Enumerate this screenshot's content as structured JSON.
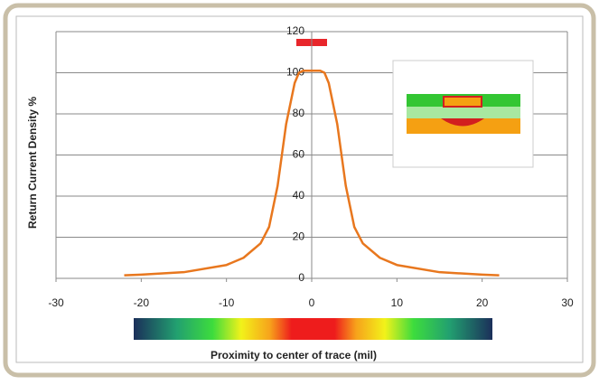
{
  "chart_data": {
    "type": "line",
    "x_label": "Proximity to center of trace (mil)",
    "y_label": "Return Current Density %",
    "x": [
      -22,
      -20,
      -15,
      -10,
      -8,
      -6,
      -5,
      -4,
      -3,
      -2,
      -1.5,
      -1,
      0,
      1,
      1.5,
      2,
      3,
      4,
      5,
      6,
      8,
      10,
      15,
      20,
      22
    ],
    "series": [
      {
        "color": "#e8771e",
        "values": [
          1.5,
          1.8,
          3,
          6.5,
          10,
          17,
          25,
          45,
          75,
          95,
          100,
          101,
          101,
          101,
          100,
          95,
          75,
          45,
          25,
          17,
          10,
          6.5,
          3,
          1.8,
          1.5
        ]
      }
    ],
    "xlim": [
      -30,
      30
    ],
    "xticks": [
      -30,
      -20,
      -10,
      0,
      10,
      20,
      30
    ],
    "ylim": [
      0,
      120
    ],
    "yticks": [
      0,
      20,
      40,
      60,
      80,
      100,
      120
    ],
    "grid": true
  }
}
